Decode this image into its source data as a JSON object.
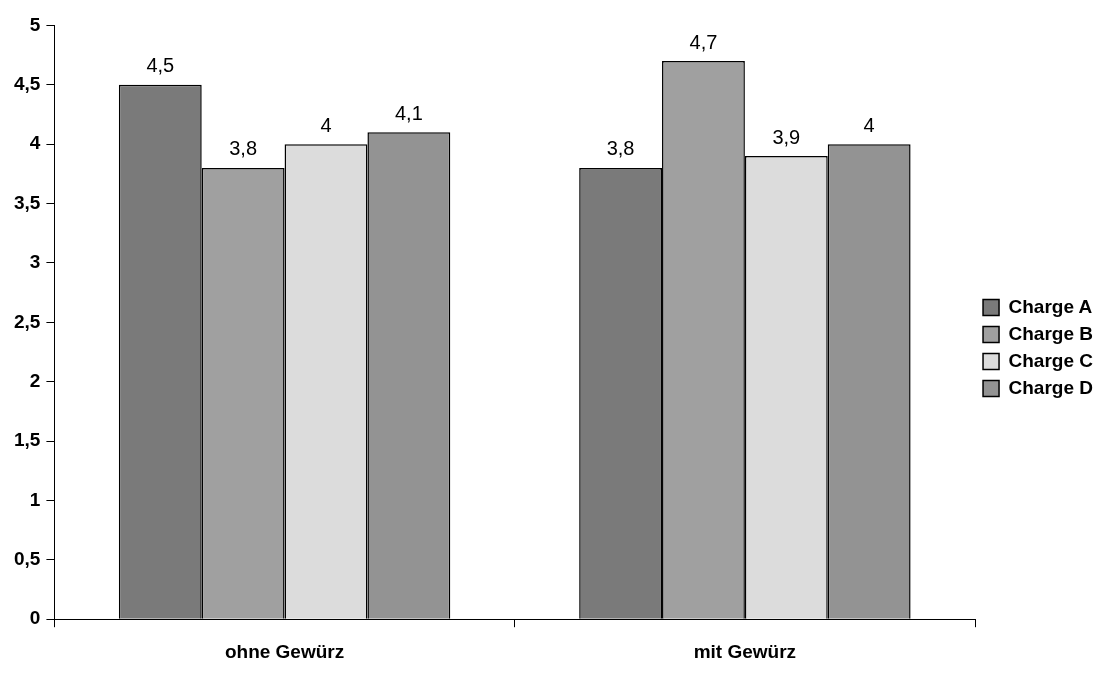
{
  "chart_data": {
    "type": "bar",
    "categories": [
      "ohne Gewürz",
      "mit Gewürz"
    ],
    "series": [
      {
        "name": "Charge A",
        "color": "#7a7a7a",
        "values": [
          4.5,
          3.8
        ],
        "value_labels": [
          "4,5",
          "3,8"
        ]
      },
      {
        "name": "Charge B",
        "color": "#a0a0a0",
        "values": [
          3.8,
          4.7
        ],
        "value_labels": [
          "3,8",
          "4,7"
        ]
      },
      {
        "name": "Charge C",
        "color": "#dcdcdc",
        "values": [
          4,
          3.9
        ],
        "value_labels": [
          "4",
          "3,9"
        ]
      },
      {
        "name": "Charge D",
        "color": "#939393",
        "values": [
          4.1,
          4
        ],
        "value_labels": [
          "4,1",
          "4"
        ]
      }
    ],
    "ylim": [
      0,
      5
    ],
    "yticks": [
      0,
      {
        "value": 0.5,
        "label": "0,5"
      },
      1,
      {
        "value": 1.5,
        "label": "1,5"
      },
      2,
      {
        "value": 2.5,
        "label": "2,5"
      },
      3,
      {
        "value": 3.5,
        "label": "3,5"
      },
      4,
      {
        "value": 4.5,
        "label": "4,5"
      },
      5
    ],
    "grid": false,
    "legend": "right"
  }
}
